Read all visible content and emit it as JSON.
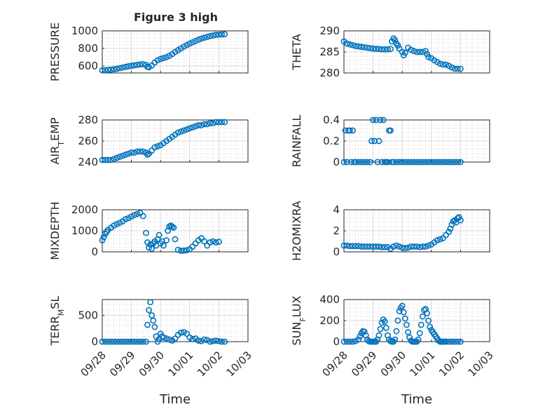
{
  "figure": {
    "title": "Figure 3 high"
  },
  "chart_data": [
    {
      "id": "pressure",
      "type": "scatter",
      "title": "Figure 3 high",
      "ylabel": "PRESSURE",
      "xlabel": "",
      "ylim": [
        520,
        1000
      ],
      "yticks": [
        600,
        800,
        1000
      ],
      "ytick_labels": [
        "600",
        "800",
        "1000"
      ],
      "xlim": [
        0,
        5
      ],
      "xticks": [
        0,
        1,
        2,
        3,
        4,
        5
      ],
      "xtick_labels": [],
      "x": [
        0.0,
        0.1,
        0.2,
        0.3,
        0.4,
        0.5,
        0.6,
        0.7,
        0.8,
        0.9,
        1.0,
        1.1,
        1.2,
        1.3,
        1.4,
        1.5,
        1.55,
        1.6,
        1.7,
        1.8,
        1.9,
        2.0,
        2.1,
        2.2,
        2.3,
        2.4,
        2.5,
        2.6,
        2.7,
        2.8,
        2.9,
        3.0,
        3.1,
        3.2,
        3.3,
        3.4,
        3.5,
        3.6,
        3.7,
        3.8,
        3.9,
        4.0,
        4.1,
        4.2
      ],
      "y": [
        550,
        552,
        555,
        558,
        562,
        568,
        575,
        583,
        590,
        597,
        602,
        608,
        613,
        618,
        620,
        612,
        590,
        585,
        605,
        640,
        665,
        680,
        690,
        700,
        715,
        735,
        760,
        780,
        800,
        820,
        838,
        855,
        870,
        885,
        900,
        912,
        922,
        932,
        940,
        948,
        955,
        958,
        960,
        962
      ]
    },
    {
      "id": "theta",
      "type": "scatter",
      "ylabel": "THETA",
      "xlabel": "",
      "ylim": [
        280,
        290
      ],
      "yticks": [
        280,
        285,
        290
      ],
      "ytick_labels": [
        "280",
        "285",
        "290"
      ],
      "xlim": [
        0,
        5
      ],
      "xticks": [
        0,
        1,
        2,
        3,
        4,
        5
      ],
      "xtick_labels": [],
      "x": [
        0.0,
        0.1,
        0.2,
        0.3,
        0.4,
        0.5,
        0.6,
        0.7,
        0.8,
        0.9,
        1.0,
        1.1,
        1.2,
        1.3,
        1.4,
        1.5,
        1.6,
        1.65,
        1.7,
        1.75,
        1.8,
        1.85,
        1.9,
        2.0,
        2.05,
        2.1,
        2.2,
        2.3,
        2.4,
        2.5,
        2.6,
        2.7,
        2.8,
        2.85,
        2.9,
        3.0,
        3.1,
        3.2,
        3.3,
        3.4,
        3.5,
        3.6,
        3.7,
        3.8,
        3.9,
        4.0
      ],
      "y": [
        287.5,
        287.0,
        286.8,
        286.6,
        286.4,
        286.3,
        286.2,
        286.1,
        286.0,
        285.9,
        285.8,
        285.7,
        285.7,
        285.6,
        285.6,
        285.6,
        285.7,
        287.5,
        288.2,
        287.8,
        287.0,
        286.5,
        285.8,
        285.0,
        284.2,
        284.8,
        286.0,
        285.5,
        285.2,
        285.0,
        285.0,
        285.0,
        285.2,
        284.5,
        283.8,
        283.5,
        283.0,
        282.6,
        282.2,
        282.0,
        282.0,
        281.7,
        281.3,
        281.0,
        281.0,
        281.0
      ]
    },
    {
      "id": "air_temp",
      "type": "scatter",
      "ylabel": "AIR_TEMP",
      "ylabel_parts": [
        "AIR",
        "T",
        "EMP"
      ],
      "xlabel": "",
      "ylim": [
        240,
        280
      ],
      "yticks": [
        240,
        260,
        280
      ],
      "ytick_labels": [
        "240",
        "260",
        "280"
      ],
      "xlim": [
        0,
        5
      ],
      "xticks": [
        0,
        1,
        2,
        3,
        4,
        5
      ],
      "xtick_labels": [],
      "x": [
        0.0,
        0.1,
        0.2,
        0.3,
        0.4,
        0.5,
        0.6,
        0.7,
        0.8,
        0.9,
        1.0,
        1.1,
        1.2,
        1.3,
        1.4,
        1.5,
        1.55,
        1.6,
        1.7,
        1.8,
        1.9,
        2.0,
        2.1,
        2.2,
        2.3,
        2.4,
        2.5,
        2.6,
        2.7,
        2.8,
        2.9,
        3.0,
        3.1,
        3.2,
        3.3,
        3.4,
        3.5,
        3.6,
        3.7,
        3.8,
        3.9,
        4.0,
        4.1,
        4.2
      ],
      "y": [
        242,
        242,
        242,
        242,
        243,
        244,
        245,
        246,
        247,
        248,
        249,
        249,
        250,
        250,
        250,
        249,
        247,
        248,
        251,
        254,
        255,
        256,
        258,
        260,
        262,
        264,
        266,
        268,
        269,
        270,
        271,
        272,
        273,
        274,
        275,
        275,
        276,
        276,
        277,
        277,
        278,
        278,
        278,
        278
      ]
    },
    {
      "id": "rainfall",
      "type": "scatter",
      "ylabel": "RAINFALL",
      "xlabel": "",
      "ylim": [
        0,
        0.4
      ],
      "yticks": [
        0,
        0.2,
        0.4
      ],
      "ytick_labels": [
        "0",
        "0.2",
        "0.4"
      ],
      "xlim": [
        0,
        5
      ],
      "xticks": [
        0,
        1,
        2,
        3,
        4,
        5
      ],
      "xtick_labels": [],
      "x": [
        0.0,
        0.05,
        0.1,
        0.15,
        0.2,
        0.25,
        0.3,
        0.35,
        0.4,
        0.5,
        0.6,
        0.7,
        0.8,
        0.9,
        0.95,
        1.0,
        1.05,
        1.1,
        1.15,
        1.2,
        1.25,
        1.3,
        1.35,
        1.4,
        1.45,
        1.5,
        1.55,
        1.6,
        1.65,
        1.7,
        1.8,
        1.9,
        2.0,
        2.1,
        2.2,
        2.3,
        2.4,
        2.5,
        2.6,
        2.7,
        2.8,
        2.9,
        3.0,
        3.1,
        3.2,
        3.3,
        3.4,
        3.5,
        3.6,
        3.7,
        3.8,
        3.9,
        4.0
      ],
      "y": [
        0,
        0.3,
        0,
        0.3,
        0.3,
        0,
        0.3,
        0,
        0,
        0,
        0,
        0,
        0,
        0,
        0.2,
        0.4,
        0.2,
        0.4,
        0,
        0.2,
        0.4,
        0,
        0.4,
        0,
        0,
        0,
        0.3,
        0.3,
        0,
        0,
        0,
        0,
        0,
        0,
        0,
        0,
        0,
        0,
        0,
        0,
        0,
        0,
        0,
        0,
        0,
        0,
        0,
        0,
        0,
        0,
        0,
        0,
        0
      ]
    },
    {
      "id": "mixdepth",
      "type": "scatter",
      "ylabel": "MIXDEPTH",
      "xlabel": "",
      "ylim": [
        0,
        2000
      ],
      "yticks": [
        0,
        1000,
        2000
      ],
      "ytick_labels": [
        "0",
        "1000",
        "2000"
      ],
      "xlim": [
        0,
        5
      ],
      "xticks": [
        0,
        1,
        2,
        3,
        4,
        5
      ],
      "xtick_labels": [],
      "x": [
        0.0,
        0.05,
        0.1,
        0.15,
        0.2,
        0.3,
        0.4,
        0.5,
        0.6,
        0.7,
        0.8,
        0.9,
        1.0,
        1.1,
        1.2,
        1.3,
        1.4,
        1.5,
        1.55,
        1.6,
        1.65,
        1.7,
        1.75,
        1.8,
        1.85,
        1.9,
        1.95,
        2.0,
        2.05,
        2.1,
        2.2,
        2.25,
        2.3,
        2.35,
        2.4,
        2.45,
        2.5,
        2.6,
        2.7,
        2.8,
        2.9,
        3.0,
        3.1,
        3.2,
        3.3,
        3.4,
        3.5,
        3.6,
        3.7,
        3.8,
        3.9,
        4.0
      ],
      "y": [
        550,
        700,
        850,
        950,
        1050,
        1150,
        1250,
        1320,
        1380,
        1450,
        1550,
        1600,
        1680,
        1750,
        1800,
        1850,
        1700,
        900,
        450,
        200,
        350,
        150,
        400,
        500,
        300,
        600,
        800,
        400,
        500,
        300,
        550,
        1000,
        1200,
        1250,
        1200,
        1150,
        600,
        100,
        50,
        60,
        80,
        120,
        250,
        400,
        550,
        650,
        500,
        300,
        450,
        500,
        450,
        480
      ]
    },
    {
      "id": "h2omixra",
      "type": "scatter",
      "ylabel": "H2OMIXRA",
      "xlabel": "",
      "ylim": [
        0,
        4
      ],
      "yticks": [
        0,
        2,
        4
      ],
      "ytick_labels": [
        "0",
        "2",
        "4"
      ],
      "xlim": [
        0,
        5
      ],
      "xticks": [
        0,
        1,
        2,
        3,
        4,
        5
      ],
      "xtick_labels": [],
      "x": [
        0.0,
        0.1,
        0.2,
        0.3,
        0.4,
        0.5,
        0.6,
        0.7,
        0.8,
        0.9,
        1.0,
        1.1,
        1.2,
        1.3,
        1.4,
        1.5,
        1.6,
        1.7,
        1.8,
        1.9,
        2.0,
        2.1,
        2.2,
        2.3,
        2.4,
        2.5,
        2.6,
        2.7,
        2.8,
        2.9,
        3.0,
        3.1,
        3.2,
        3.3,
        3.4,
        3.5,
        3.6,
        3.65,
        3.7,
        3.75,
        3.8,
        3.85,
        3.9,
        3.95,
        4.0
      ],
      "y": [
        0.6,
        0.6,
        0.55,
        0.55,
        0.55,
        0.55,
        0.5,
        0.5,
        0.5,
        0.5,
        0.5,
        0.5,
        0.5,
        0.45,
        0.45,
        0.45,
        0.3,
        0.5,
        0.6,
        0.5,
        0.4,
        0.35,
        0.4,
        0.5,
        0.5,
        0.5,
        0.45,
        0.5,
        0.5,
        0.6,
        0.7,
        0.9,
        1.1,
        1.2,
        1.3,
        1.6,
        1.9,
        2.2,
        2.6,
        2.9,
        3.0,
        2.8,
        3.2,
        3.3,
        3.0
      ]
    },
    {
      "id": "terr_msl",
      "type": "scatter",
      "ylabel": "TERR_MSL",
      "ylabel_parts": [
        "TERR",
        "M",
        "SL"
      ],
      "xlabel": "Time",
      "ylim": [
        0,
        800
      ],
      "yticks": [
        0,
        500
      ],
      "ytick_labels": [
        "0",
        "500"
      ],
      "xlim": [
        0,
        5
      ],
      "xticks": [
        0,
        1,
        2,
        3,
        4,
        5
      ],
      "xtick_labels": [
        "09/28",
        "09/29",
        "09/30",
        "10/01",
        "10/02",
        "10/03"
      ],
      "x": [
        0.0,
        0.1,
        0.2,
        0.3,
        0.4,
        0.5,
        0.6,
        0.7,
        0.8,
        0.9,
        1.0,
        1.1,
        1.2,
        1.3,
        1.4,
        1.5,
        1.55,
        1.6,
        1.65,
        1.7,
        1.75,
        1.8,
        1.85,
        1.9,
        1.95,
        2.0,
        2.05,
        2.1,
        2.2,
        2.3,
        2.4,
        2.5,
        2.6,
        2.7,
        2.8,
        2.9,
        3.0,
        3.1,
        3.2,
        3.3,
        3.4,
        3.5,
        3.6,
        3.7,
        3.8,
        3.9,
        4.0,
        4.1,
        4.2
      ],
      "y": [
        0,
        0,
        0,
        0,
        0,
        0,
        0,
        0,
        0,
        0,
        0,
        0,
        0,
        0,
        0,
        0,
        320,
        600,
        750,
        500,
        400,
        280,
        100,
        0,
        50,
        150,
        100,
        80,
        60,
        40,
        20,
        60,
        130,
        170,
        180,
        150,
        80,
        50,
        60,
        20,
        10,
        40,
        30,
        0,
        10,
        20,
        10,
        0,
        0
      ]
    },
    {
      "id": "sun_flux",
      "type": "scatter",
      "ylabel": "SUN_FLUX",
      "ylabel_parts": [
        "SUN",
        "F",
        "LUX"
      ],
      "xlabel": "Time",
      "ylim": [
        0,
        400
      ],
      "yticks": [
        0,
        200,
        400
      ],
      "ytick_labels": [
        "0",
        "200",
        "400"
      ],
      "xlim": [
        0,
        5
      ],
      "xticks": [
        0,
        1,
        2,
        3,
        4,
        5
      ],
      "xtick_labels": [
        "09/28",
        "09/29",
        "09/30",
        "10/01",
        "10/02",
        "10/03"
      ],
      "x": [
        0.0,
        0.1,
        0.2,
        0.3,
        0.4,
        0.5,
        0.55,
        0.6,
        0.65,
        0.7,
        0.75,
        0.8,
        0.85,
        0.9,
        0.95,
        1.0,
        1.05,
        1.1,
        1.15,
        1.2,
        1.25,
        1.3,
        1.35,
        1.4,
        1.45,
        1.5,
        1.55,
        1.6,
        1.65,
        1.7,
        1.75,
        1.8,
        1.85,
        1.9,
        1.95,
        2.0,
        2.05,
        2.1,
        2.15,
        2.2,
        2.25,
        2.3,
        2.35,
        2.4,
        2.45,
        2.5,
        2.55,
        2.6,
        2.65,
        2.7,
        2.75,
        2.8,
        2.85,
        2.9,
        2.95,
        3.0,
        3.05,
        3.1,
        3.15,
        3.2,
        3.25,
        3.3,
        3.35,
        3.4,
        3.45,
        3.5,
        3.6,
        3.7,
        3.8,
        3.9,
        4.0
      ],
      "y": [
        0,
        0,
        0,
        0,
        5,
        20,
        50,
        80,
        100,
        95,
        60,
        20,
        5,
        0,
        0,
        0,
        0,
        0,
        20,
        60,
        120,
        180,
        210,
        190,
        130,
        60,
        20,
        5,
        0,
        0,
        20,
        100,
        200,
        290,
        320,
        340,
        280,
        220,
        160,
        90,
        40,
        10,
        0,
        0,
        0,
        0,
        20,
        80,
        160,
        240,
        300,
        310,
        270,
        200,
        140,
        110,
        90,
        70,
        50,
        30,
        10,
        0,
        0,
        0,
        0,
        0,
        0,
        0,
        0,
        0,
        0
      ]
    }
  ]
}
